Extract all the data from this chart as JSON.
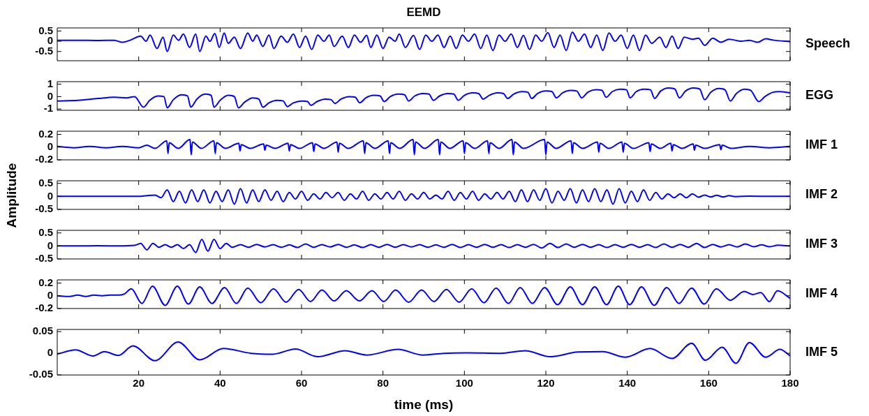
{
  "chart_data": [
    {
      "type": "line",
      "title": "EEMD",
      "xlim": [
        0,
        180
      ],
      "xticks": [
        20,
        40,
        60,
        80,
        100,
        120,
        140,
        160,
        180
      ],
      "ylim": [
        -0.95,
        0.65
      ],
      "yticks": [
        -0.5,
        0,
        0.5
      ],
      "tick_labels": "y",
      "series": [
        {
          "name": "Speech",
          "color": "#0000ff",
          "x": [
            0,
            5,
            10,
            14,
            16,
            18,
            20.5,
            21.8,
            22.8,
            24.5,
            26,
            27,
            28.5,
            29.8,
            31,
            32.5,
            34,
            35,
            36.5,
            37.5,
            38.7,
            39.8,
            41,
            42,
            43.5,
            45,
            46.8,
            48,
            49,
            50.5,
            52,
            53.2,
            55,
            56.5,
            58,
            59.5,
            61,
            62.5,
            64,
            65.5,
            66.8,
            68,
            70,
            71.5,
            73,
            74.5,
            76,
            77,
            78.5,
            80,
            81.5,
            83,
            84,
            85.5,
            87.5,
            89,
            90.5,
            92,
            93.5,
            95,
            96.5,
            98,
            99.5,
            101,
            102.5,
            104,
            105.5,
            107,
            108.5,
            110,
            111.5,
            113,
            114.5,
            116,
            117.5,
            119,
            120.5,
            122,
            123.5,
            125,
            126.5,
            128,
            129.5,
            131,
            132.5,
            134,
            135.5,
            137,
            138.5,
            140,
            141.5,
            143,
            144.5,
            146,
            148,
            149.5,
            151,
            152.5,
            154,
            156,
            157.5,
            159,
            161,
            163,
            165,
            168,
            170,
            172,
            174,
            176,
            180
          ],
          "values": [
            0.05,
            0.05,
            0.04,
            0.05,
            -0.05,
            0.06,
            0.25,
            0.0,
            0.3,
            -0.35,
            0.2,
            -0.5,
            0.3,
            0.05,
            0.35,
            -0.3,
            0.35,
            -0.5,
            0.25,
            0.0,
            0.38,
            -0.3,
            0.4,
            -0.1,
            0.2,
            -0.35,
            0.4,
            0.0,
            0.3,
            -0.25,
            0.3,
            -0.35,
            0.25,
            -0.05,
            0.35,
            -0.3,
            0.25,
            -0.4,
            0.3,
            0.0,
            0.3,
            -0.25,
            0.25,
            -0.3,
            0.3,
            -0.05,
            0.28,
            -0.3,
            0.3,
            -0.35,
            0.2,
            0.0,
            0.35,
            -0.3,
            0.28,
            -0.4,
            0.3,
            0.0,
            0.3,
            -0.3,
            0.25,
            -0.35,
            0.3,
            0.0,
            0.35,
            -0.35,
            0.3,
            -0.45,
            0.3,
            0.0,
            0.35,
            -0.3,
            0.28,
            -0.4,
            0.3,
            0.0,
            0.42,
            -0.3,
            0.3,
            -0.45,
            0.45,
            0.0,
            0.35,
            -0.3,
            0.3,
            -0.45,
            0.4,
            0.0,
            0.3,
            -0.35,
            0.3,
            -0.45,
            0.3,
            -0.1,
            0.2,
            -0.3,
            0.25,
            -0.35,
            0.2,
            0.1,
            0.15,
            -0.2,
            0.15,
            -0.05,
            0.1,
            0.0,
            0.05,
            -0.05,
            0.12,
            0.05,
            -0.02
          ]
        }
      ]
    },
    {
      "type": "line",
      "xlim": [
        0,
        180
      ],
      "xticks": [
        20,
        40,
        60,
        80,
        100,
        120,
        140,
        160,
        180
      ],
      "ylim": [
        -1.1,
        1.2
      ],
      "yticks": [
        -1,
        0,
        1
      ],
      "tick_labels": "y",
      "series": [
        {
          "name": "EGG",
          "color": "#0000ff",
          "x": [
            0,
            5,
            10,
            14,
            17,
            19,
            21.2,
            22.7,
            24.7,
            26.2,
            27,
            28.5,
            30.5,
            32,
            32.8,
            34.3,
            36.3,
            37.8,
            38.5,
            40,
            42,
            43.5,
            44.5,
            46,
            48,
            49.5,
            50.5,
            52,
            54,
            55.5,
            56.5,
            58,
            60,
            61.5,
            62.3,
            63.8,
            65.8,
            67.3,
            68.2,
            69.7,
            71.7,
            73.2,
            74.3,
            75.8,
            77.8,
            79.3,
            80.3,
            81.8,
            83.8,
            85.3,
            86.3,
            87.8,
            89.8,
            91.3,
            92.4,
            93.9,
            95.9,
            97.4,
            98.5,
            100,
            102,
            103.5,
            104.6,
            106.1,
            108.1,
            109.6,
            110.6,
            112.1,
            114.1,
            115.6,
            116.5,
            118,
            120,
            121.5,
            122.6,
            124.1,
            126.1,
            127.6,
            128.8,
            130.3,
            132.3,
            133.8,
            134.8,
            136.3,
            138.3,
            139.8,
            140.7,
            142.2,
            144.2,
            145.7,
            146.7,
            148.2,
            150.2,
            151.7,
            152.8,
            154.3,
            156.3,
            157.8,
            159,
            160.5,
            162.5,
            164,
            165.3,
            166.8,
            168.8,
            170.3,
            172.3,
            173.8,
            175.8,
            177.3,
            180
          ],
          "values": [
            -0.35,
            -0.3,
            -0.15,
            -0.05,
            -0.1,
            0.0,
            -0.85,
            -0.3,
            0.05,
            0.0,
            -0.9,
            -0.25,
            0.15,
            0.05,
            -0.85,
            -0.2,
            0.2,
            0.1,
            -0.85,
            -0.3,
            0.1,
            0.0,
            -0.9,
            -0.45,
            -0.1,
            -0.2,
            -0.85,
            -0.5,
            -0.3,
            -0.35,
            -0.8,
            -0.5,
            -0.35,
            -0.4,
            -0.7,
            -0.4,
            -0.2,
            -0.25,
            -0.55,
            -0.2,
            0.0,
            -0.05,
            -0.5,
            -0.1,
            0.1,
            0.05,
            -0.4,
            0.0,
            0.2,
            0.15,
            -0.35,
            0.05,
            0.25,
            0.2,
            -0.3,
            0.05,
            0.25,
            0.2,
            -0.3,
            0.1,
            0.3,
            0.25,
            -0.2,
            0.1,
            0.3,
            0.25,
            -0.15,
            0.2,
            0.4,
            0.35,
            -0.15,
            0.25,
            0.45,
            0.4,
            -0.1,
            0.3,
            0.5,
            0.45,
            -0.1,
            0.35,
            0.55,
            0.5,
            -0.05,
            0.4,
            0.6,
            0.55,
            -0.1,
            0.4,
            0.6,
            0.55,
            -0.15,
            0.45,
            0.7,
            0.6,
            -0.1,
            0.45,
            0.7,
            0.6,
            -0.25,
            0.35,
            0.65,
            0.55,
            -0.35,
            0.25,
            0.6,
            0.5,
            -0.4,
            0.0,
            0.35,
            0.4,
            0.3
          ]
        }
      ]
    },
    {
      "type": "line",
      "xlim": [
        0,
        180
      ],
      "xticks": [
        20,
        40,
        60,
        80,
        100,
        120,
        140,
        160,
        180
      ],
      "ylim": [
        -0.2,
        0.25
      ],
      "yticks": [
        -0.2,
        0,
        0.2
      ],
      "tick_labels": "y",
      "series": [
        {
          "name": "IMF 1",
          "color": "#0000ff",
          "x": [
            0,
            4,
            8,
            12,
            16,
            20,
            22,
            24,
            26.9,
            27.2,
            27.5,
            29.7,
            32.6,
            32.9,
            33.2,
            35.4,
            38.5,
            38.8,
            39.1,
            41.3,
            44.6,
            44.9,
            45.2,
            47.4,
            50.7,
            51,
            51.3,
            53.5,
            56.7,
            57,
            57.3,
            59.5,
            62.7,
            63,
            63.3,
            65.5,
            68.7,
            69,
            69.3,
            71.5,
            75.2,
            75.5,
            75.8,
            78,
            81.3,
            81.6,
            81.9,
            84.1,
            87.4,
            87.7,
            88,
            90.2,
            93.6,
            93.9,
            94.2,
            96.4,
            99.7,
            100,
            100.3,
            102.5,
            105.7,
            106,
            106.3,
            108.5,
            111.7,
            112,
            112.3,
            114.5,
            119.7,
            120,
            120.3,
            122.5,
            126.2,
            126.5,
            126.8,
            129,
            132.7,
            133,
            133.3,
            135.5,
            138.7,
            139,
            139.3,
            141.5,
            145.3,
            145.6,
            145.9,
            148.1,
            150.7,
            151,
            151.3,
            153.5,
            156.2,
            156.5,
            156.8,
            159,
            162.7,
            163,
            163.3,
            165.5,
            170,
            175,
            180
          ],
          "values": [
            0.01,
            -0.01,
            0.01,
            -0.01,
            0.01,
            -0.01,
            0.03,
            -0.02,
            0.1,
            -0.1,
            0.07,
            -0.02,
            0.12,
            -0.12,
            0.08,
            -0.02,
            0.1,
            -0.1,
            0.07,
            -0.02,
            0.06,
            -0.06,
            0.04,
            -0.02,
            0.05,
            -0.05,
            0.03,
            -0.02,
            0.06,
            -0.06,
            0.04,
            -0.02,
            0.07,
            -0.07,
            0.05,
            -0.02,
            0.08,
            -0.08,
            0.06,
            -0.02,
            0.1,
            -0.1,
            0.07,
            -0.02,
            0.1,
            -0.1,
            0.07,
            -0.02,
            0.12,
            -0.12,
            0.08,
            -0.02,
            0.12,
            -0.12,
            0.08,
            -0.02,
            0.1,
            -0.1,
            0.07,
            -0.02,
            0.1,
            -0.1,
            0.07,
            -0.02,
            0.12,
            -0.12,
            0.08,
            -0.02,
            0.12,
            -0.12,
            0.08,
            -0.02,
            0.1,
            -0.1,
            0.07,
            -0.02,
            0.08,
            -0.08,
            0.06,
            -0.02,
            0.08,
            -0.08,
            0.06,
            -0.02,
            0.07,
            -0.07,
            0.05,
            -0.02,
            0.06,
            -0.06,
            0.04,
            -0.02,
            0.05,
            -0.05,
            0.03,
            -0.02,
            0.04,
            -0.04,
            0.03,
            -0.02,
            0.01,
            -0.01,
            0.01
          ]
        }
      ]
    },
    {
      "type": "line",
      "ylabel": "Amplitude",
      "xlim": [
        0,
        180
      ],
      "xticks": [
        20,
        40,
        60,
        80,
        100,
        120,
        140,
        160,
        180
      ],
      "ylim": [
        -0.5,
        0.6
      ],
      "yticks": [
        -0.5,
        0,
        0.5
      ],
      "tick_labels": "y",
      "series": [
        {
          "name": "IMF 2",
          "color": "#0000ff",
          "x": [
            0,
            10,
            20,
            22,
            24,
            25.5,
            27,
            28.5,
            30,
            31.5,
            33,
            34.5,
            36,
            37.5,
            39,
            40.5,
            42,
            43.5,
            45,
            46.5,
            48,
            49.5,
            51,
            52.5,
            54,
            55.5,
            57,
            58.5,
            60,
            61.5,
            63,
            64.5,
            66,
            67.5,
            69,
            70.5,
            72,
            73.5,
            75,
            76.5,
            78,
            79.5,
            81,
            82.5,
            84,
            85.5,
            87,
            88.5,
            90,
            91.5,
            93,
            94.5,
            96,
            97.5,
            99,
            100.5,
            102,
            103.5,
            105,
            106.5,
            108,
            109.5,
            111,
            112.5,
            114,
            115.5,
            117,
            118.5,
            120,
            121.5,
            123,
            124.5,
            126,
            127.5,
            129,
            130.5,
            132,
            133.5,
            135,
            136.5,
            138,
            139.5,
            141,
            142.5,
            144,
            145.5,
            147,
            148.5,
            150,
            151.5,
            153,
            154.5,
            156,
            157.5,
            159,
            160.5,
            162,
            163.5,
            165,
            166.5,
            170,
            175,
            180
          ],
          "values": [
            0,
            0,
            0,
            0.03,
            0.05,
            -0.05,
            0.25,
            -0.2,
            0.2,
            -0.25,
            0.25,
            -0.2,
            0.25,
            -0.25,
            0.2,
            -0.2,
            0.25,
            -0.3,
            0.3,
            -0.25,
            0.25,
            -0.2,
            0.25,
            -0.15,
            0.2,
            -0.2,
            0.15,
            -0.1,
            0.2,
            -0.15,
            0.1,
            -0.1,
            0.15,
            -0.05,
            0.15,
            -0.15,
            0.1,
            -0.1,
            0.2,
            -0.15,
            0.1,
            -0.1,
            0.15,
            -0.1,
            0.2,
            -0.15,
            0.1,
            -0.1,
            0.15,
            -0.1,
            0.05,
            -0.1,
            0.2,
            -0.15,
            0.15,
            -0.1,
            0.2,
            -0.15,
            0.1,
            -0.1,
            0.15,
            -0.1,
            0.2,
            -0.2,
            0.25,
            -0.2,
            0.25,
            -0.15,
            0.3,
            -0.25,
            0.2,
            -0.15,
            0.3,
            -0.25,
            0.25,
            -0.2,
            0.3,
            -0.2,
            0.25,
            -0.3,
            0.3,
            -0.25,
            0.2,
            -0.2,
            0.25,
            -0.15,
            0.15,
            -0.1,
            0.1,
            -0.05,
            0.1,
            -0.05,
            0.1,
            -0.03,
            0.05,
            -0.02,
            0.04,
            -0.02,
            0.03,
            -0.01,
            0.01,
            0,
            0
          ]
        }
      ]
    },
    {
      "type": "line",
      "xlim": [
        0,
        180
      ],
      "xticks": [
        20,
        40,
        60,
        80,
        100,
        120,
        140,
        160,
        180
      ],
      "ylim": [
        -0.5,
        0.6
      ],
      "yticks": [
        -0.5,
        0,
        0.5
      ],
      "tick_labels": "y",
      "series": [
        {
          "name": "IMF 3",
          "color": "#0000ff",
          "x": [
            0,
            5,
            10,
            15,
            19,
            20.5,
            22,
            23.5,
            25,
            26.5,
            28,
            29.5,
            31,
            32.5,
            34,
            35.5,
            37,
            38.5,
            40,
            41.5,
            43,
            45,
            47,
            49,
            51,
            53,
            55,
            57,
            59,
            61,
            63,
            65,
            67,
            69,
            71,
            73,
            75,
            77,
            79,
            81,
            83,
            85,
            87,
            89,
            91,
            93,
            95,
            97,
            99,
            101,
            103,
            105,
            107,
            109,
            111,
            113,
            115,
            117,
            119,
            121,
            123,
            125,
            127,
            129,
            131,
            133,
            135,
            137,
            139,
            141,
            143,
            145,
            147,
            149,
            151,
            153,
            155,
            157,
            159,
            161,
            163,
            165,
            167,
            169,
            171,
            173,
            175,
            177,
            180
          ],
          "values": [
            0,
            0,
            0.01,
            0,
            0.02,
            0.1,
            -0.15,
            0.1,
            -0.05,
            0.05,
            -0.05,
            0.05,
            -0.1,
            0.05,
            -0.25,
            0.25,
            -0.2,
            0.25,
            -0.1,
            0.1,
            -0.05,
            0.05,
            -0.05,
            0.06,
            -0.04,
            0.05,
            -0.05,
            0.04,
            -0.06,
            0.08,
            -0.05,
            0.05,
            -0.04,
            0.06,
            -0.05,
            0.04,
            -0.06,
            0.05,
            -0.05,
            0.06,
            -0.05,
            0.05,
            -0.04,
            0.05,
            -0.05,
            0.04,
            -0.05,
            0.06,
            -0.06,
            0.05,
            -0.05,
            0.06,
            -0.05,
            0.05,
            -0.06,
            0.05,
            -0.05,
            0.06,
            -0.08,
            0.1,
            -0.06,
            0.08,
            -0.05,
            0.06,
            -0.05,
            0.05,
            -0.06,
            0.05,
            -0.05,
            0.06,
            -0.05,
            0.05,
            -0.06,
            0.08,
            -0.05,
            0.06,
            -0.05,
            0.1,
            -0.06,
            0.06,
            -0.04,
            0.05,
            -0.04,
            0.08,
            -0.03,
            0.04,
            -0.03,
            0.03,
            0
          ]
        }
      ]
    },
    {
      "type": "line",
      "xlim": [
        0,
        180
      ],
      "xticks": [
        20,
        40,
        60,
        80,
        100,
        120,
        140,
        160,
        180
      ],
      "ylim": [
        -0.2,
        0.25
      ],
      "yticks": [
        -0.2,
        0,
        0.2
      ],
      "tick_labels": "y",
      "series": [
        {
          "name": "IMF 4",
          "color": "#0000ff",
          "x": [
            0,
            3,
            5,
            7,
            9,
            11,
            13,
            15,
            16.5,
            18.2,
            20.8,
            23.4,
            26.5,
            29.5,
            32.2,
            35,
            38,
            41.1,
            44,
            46.8,
            50,
            53.1,
            56.2,
            59.3,
            62.2,
            65,
            68,
            71,
            74.2,
            77.3,
            80.2,
            83.1,
            86.3,
            89.5,
            92.5,
            95.6,
            98.7,
            101.8,
            104.8,
            107.8,
            110.8,
            113.7,
            116.7,
            119.7,
            122.9,
            126,
            129,
            132,
            134.9,
            137.8,
            140.6,
            143.5,
            146.6,
            149.7,
            152.7,
            155.8,
            158.9,
            161.9,
            165.3,
            168.7,
            170.8,
            172.8,
            174.9,
            176.9,
            180
          ],
          "values": [
            0,
            -0.01,
            0.01,
            -0.01,
            0.01,
            0,
            0.01,
            0.01,
            0.03,
            0.11,
            -0.12,
            0.15,
            -0.15,
            0.15,
            -0.13,
            0.14,
            -0.12,
            0.13,
            -0.12,
            0.12,
            -0.11,
            0.11,
            -0.1,
            0.1,
            -0.09,
            0.09,
            -0.08,
            0.08,
            -0.08,
            0.08,
            -0.09,
            0.09,
            -0.1,
            0.09,
            -0.09,
            0.1,
            -0.1,
            0.11,
            -0.11,
            0.12,
            -0.12,
            0.13,
            -0.12,
            0.13,
            -0.14,
            0.14,
            -0.14,
            0.14,
            -0.14,
            0.15,
            -0.14,
            0.14,
            -0.15,
            0.13,
            -0.12,
            0.12,
            -0.13,
            0.11,
            -0.07,
            0.07,
            0.02,
            0.05,
            -0.09,
            0.08,
            -0.04
          ]
        }
      ]
    },
    {
      "type": "line",
      "xlabel": "time (ms)",
      "xlim": [
        0,
        180
      ],
      "xticks": [
        20,
        40,
        60,
        80,
        100,
        120,
        140,
        160,
        180
      ],
      "ylim": [
        -0.05,
        0.055
      ],
      "yticks": [
        -0.05,
        0,
        0.05
      ],
      "series": [
        {
          "name": "IMF 5",
          "color": "#0000ff",
          "x": [
            0,
            4.5,
            8.8,
            11.6,
            15,
            18.6,
            24,
            29.7,
            35,
            40.8,
            47.6,
            53,
            58.5,
            64,
            70.7,
            76,
            83.7,
            89.8,
            95,
            100.7,
            108.8,
            115,
            121,
            127.9,
            134,
            139.5,
            145.6,
            151,
            155.8,
            159.2,
            163.3,
            166.7,
            170,
            174,
            177.5,
            180
          ],
          "values": [
            -0.002,
            0.008,
            -0.006,
            0.004,
            -0.005,
            0.017,
            -0.017,
            0.026,
            -0.015,
            0.011,
            0,
            -0.002,
            0.01,
            -0.008,
            0.006,
            -0.004,
            0.009,
            -0.004,
            0,
            0.001,
            0,
            0.006,
            -0.008,
            0.003,
            0.004,
            -0.009,
            0.011,
            -0.012,
            0.023,
            -0.016,
            0.014,
            -0.023,
            0.025,
            -0.009,
            0.009,
            -0.006
          ]
        }
      ]
    }
  ]
}
